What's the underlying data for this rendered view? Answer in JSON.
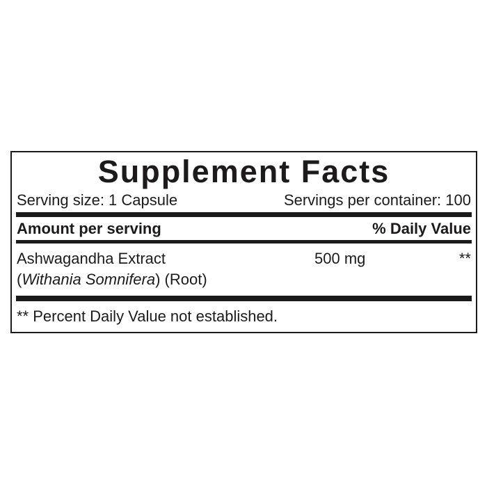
{
  "panel": {
    "title": "Supplement Facts",
    "serving_size": "Serving size: 1 Capsule",
    "servings_per_container": "Servings per container: 100",
    "columns": {
      "amount_header": "Amount per serving",
      "daily_value_header": "% Daily Value"
    },
    "rows": [
      {
        "name": "Ashwagandha Extract",
        "scientific_prefix": "(",
        "scientific_name": "Withania Somnifera",
        "scientific_suffix": ") (Root)",
        "amount": "500 mg",
        "daily_value": "**"
      }
    ],
    "footnote": "** Percent Daily Value not established."
  },
  "colors": {
    "ink": "#1d1a1b",
    "background": "#ffffff"
  }
}
